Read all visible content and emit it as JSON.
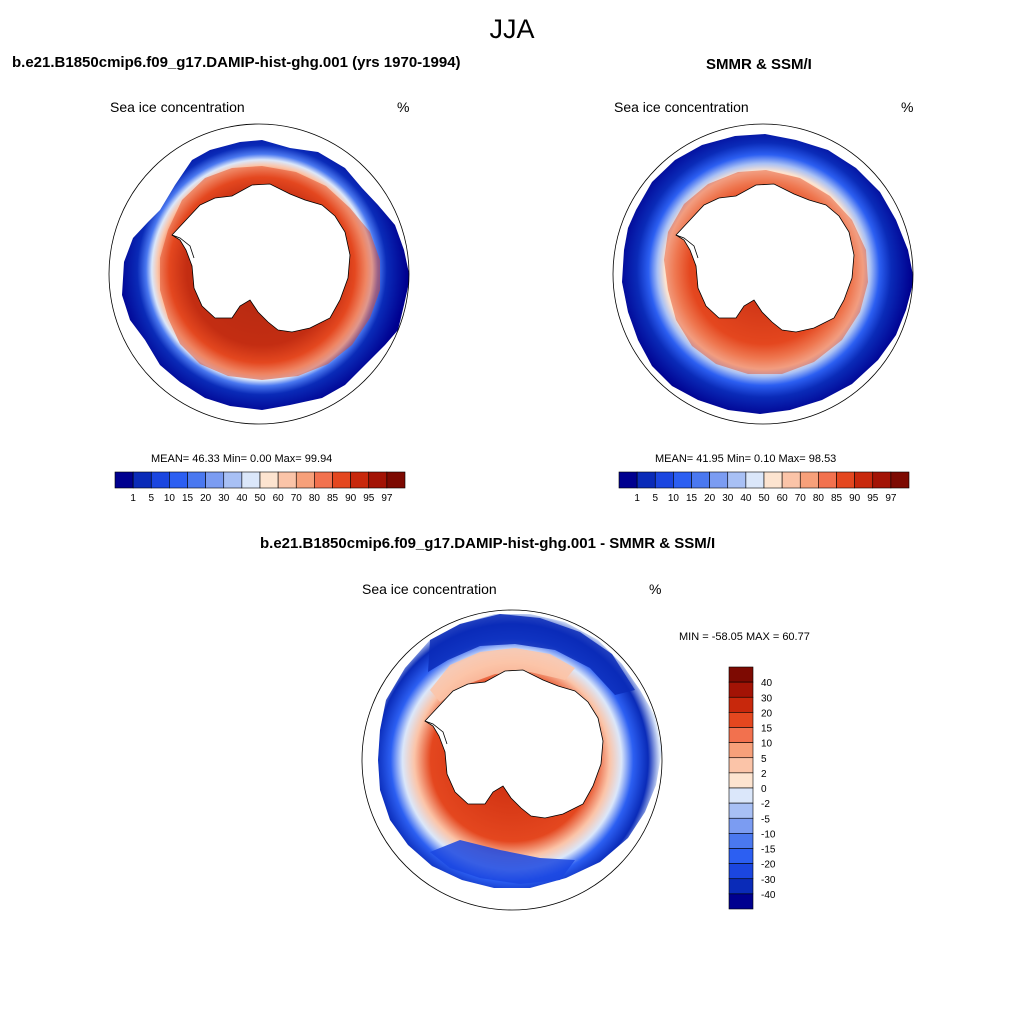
{
  "figure": {
    "title": "JJA"
  },
  "panels": {
    "model": {
      "title": "b.e21.B1850cmip6.f09_g17.DAMIP-hist-ghg.001 (yrs 1970-1994)",
      "left_string": "Sea ice concentration",
      "right_string": "%",
      "stats": "MEAN=  46.33  Min=   0.00  Max=  99.94"
    },
    "obs": {
      "title": "SMMR & SSM/I",
      "left_string": "Sea ice concentration",
      "right_string": "%",
      "stats": "MEAN=  41.95  Min=   0.10  Max=  98.53"
    },
    "diff": {
      "title": "b.e21.B1850cmip6.f09_g17.DAMIP-hist-ghg.001 - SMMR & SSM/I",
      "left_string": "Sea ice concentration",
      "right_string": "%",
      "stats": "MIN = -58.05 MAX =  60.77"
    }
  },
  "colorbars": {
    "concentration": {
      "levels": [
        "1",
        "5",
        "10",
        "15",
        "20",
        "30",
        "40",
        "50",
        "60",
        "70",
        "80",
        "85",
        "90",
        "95",
        "97"
      ],
      "colors": [
        "#00008f",
        "#0a2bb8",
        "#1b46e0",
        "#2c5ff2",
        "#4a78f0",
        "#7b9cf2",
        "#a8c0f5",
        "#dbe7fa",
        "#fde4d0",
        "#fbc4a8",
        "#f7a07a",
        "#f2714e",
        "#e4471f",
        "#c8280c",
        "#a31305",
        "#7d0a02"
      ]
    },
    "difference": {
      "levels": [
        "40",
        "30",
        "20",
        "15",
        "10",
        "5",
        "2",
        "0",
        "-2",
        "-5",
        "-10",
        "-15",
        "-20",
        "-30",
        "-40"
      ],
      "colors": [
        "#7d0a02",
        "#a31305",
        "#c8280c",
        "#e4471f",
        "#f2714e",
        "#f7a07a",
        "#fbc4a8",
        "#fde4d0",
        "#dbe7fa",
        "#a8c0f5",
        "#7b9cf2",
        "#4a78f0",
        "#2c5ff2",
        "#1b46e0",
        "#0a2bb8",
        "#00008f"
      ]
    }
  }
}
